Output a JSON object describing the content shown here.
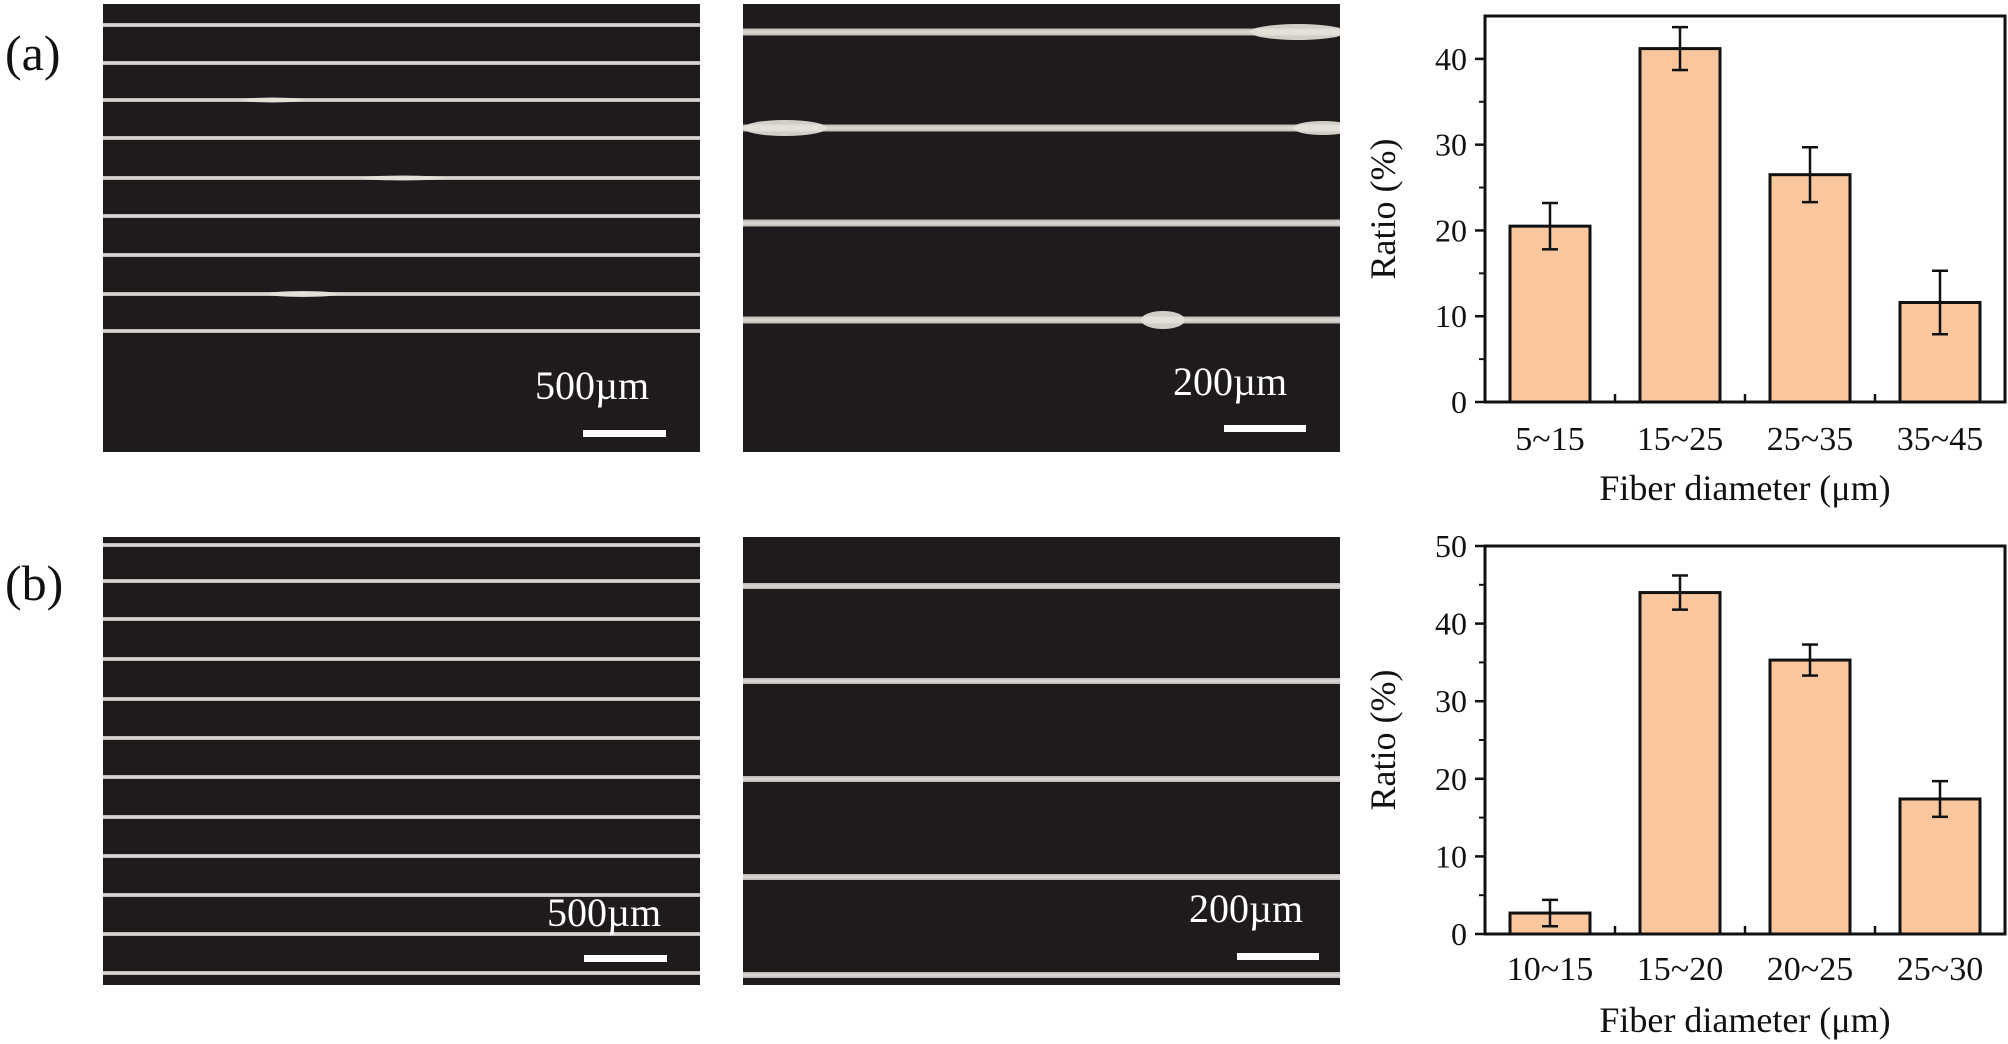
{
  "panels": {
    "a": {
      "label": "(a)",
      "scale_low": "500µm",
      "scale_high": "200µm"
    },
    "b": {
      "label": "(b)",
      "scale_low": "500µm",
      "scale_high": "200µm"
    }
  },
  "colors": {
    "bar_fill": "#f9c69d",
    "bar_stroke": "#111111",
    "micro_bg": "#1f1b1d",
    "fiber": "#e6e2da"
  },
  "chart_data": [
    {
      "type": "bar",
      "categories": [
        "5~15",
        "15~25",
        "25~35",
        "35~45"
      ],
      "values": [
        20.5,
        41.2,
        26.5,
        11.6
      ],
      "errors": [
        2.7,
        2.5,
        3.2,
        3.7
      ],
      "xlabel": "Fiber diameter (μm)",
      "ylabel": "Ratio (%)",
      "ylim": [
        0,
        45
      ],
      "yticks": [
        0,
        10,
        20,
        30,
        40
      ],
      "grid": false
    },
    {
      "type": "bar",
      "categories": [
        "10~15",
        "15~20",
        "20~25",
        "25~30"
      ],
      "values": [
        2.7,
        44.0,
        35.3,
        17.4
      ],
      "errors": [
        1.7,
        2.2,
        2.0,
        2.3
      ],
      "xlabel": "Fiber diameter (μm)",
      "ylabel": "Ratio (%)",
      "ylim": [
        0,
        50
      ],
      "yticks": [
        0,
        10,
        20,
        30,
        40,
        50
      ],
      "grid": false
    }
  ]
}
